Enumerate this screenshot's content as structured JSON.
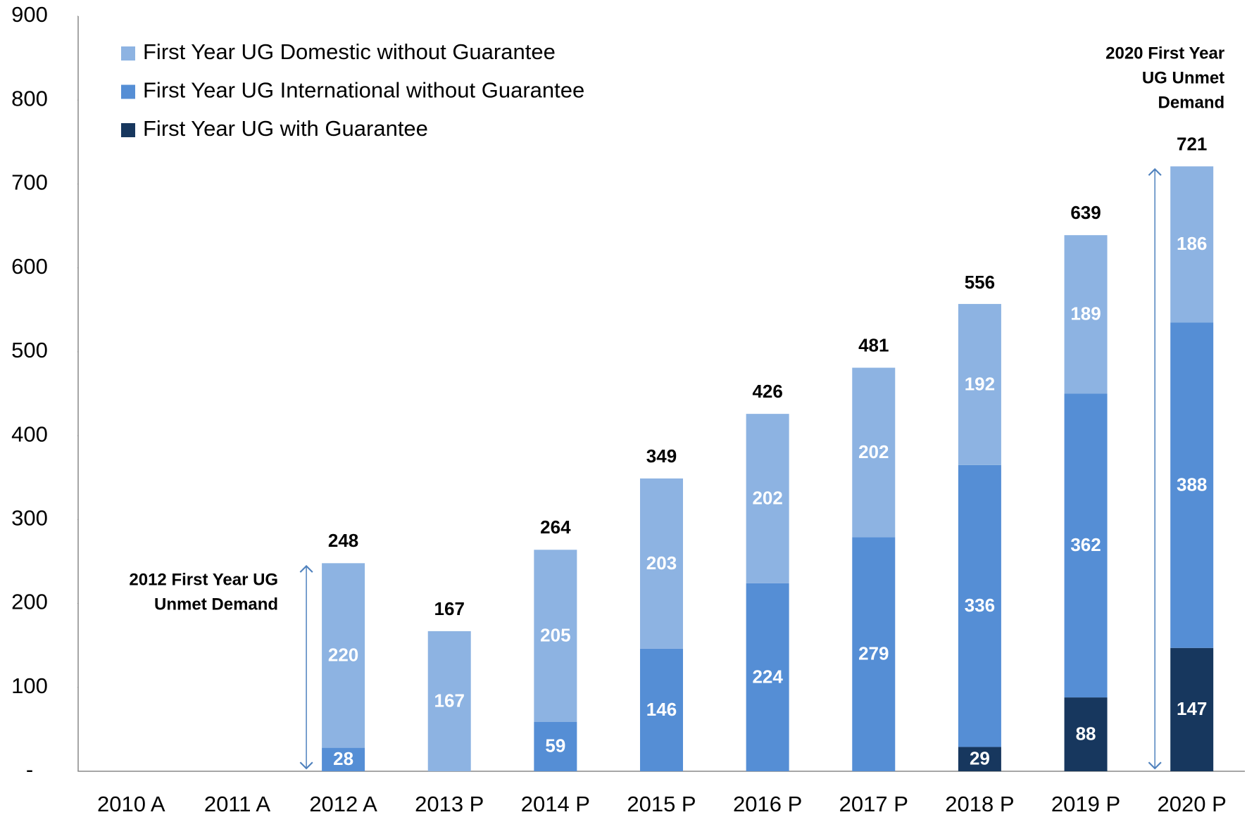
{
  "chart_data": {
    "type": "stacked_bar",
    "categories": [
      "2010 A",
      "2011 A",
      "2012 A",
      "2013 P",
      "2014 P",
      "2015 P",
      "2016 P",
      "2017 P",
      "2018 P",
      "2019 P",
      "2020 P"
    ],
    "series": [
      {
        "name": "First Year UG with Guarantee",
        "color": "#17375e",
        "values": [
          null,
          null,
          null,
          null,
          null,
          null,
          null,
          null,
          29,
          88,
          147
        ]
      },
      {
        "name": "First Year UG International without Guarantee",
        "color": "#558ed5",
        "values": [
          null,
          null,
          28,
          null,
          59,
          146,
          224,
          279,
          336,
          362,
          388
        ]
      },
      {
        "name": "First Year UG Domestic without Guarantee",
        "color": "#8db3e2",
        "values": [
          null,
          null,
          220,
          167,
          205,
          203,
          202,
          202,
          192,
          189,
          186
        ]
      }
    ],
    "totals": [
      null,
      null,
      248,
      167,
      264,
      349,
      426,
      481,
      556,
      639,
      721
    ],
    "annotations": [
      {
        "lines": [
          "2012 First Year UG",
          "Unmet Demand"
        ],
        "category": 2
      },
      {
        "lines": [
          "2020 First Year",
          "UG Unmet",
          "Demand"
        ],
        "category": 10
      }
    ],
    "ylim": [
      0,
      900
    ],
    "yticks": [
      {
        "value": 0,
        "label": "-"
      },
      100,
      200,
      300,
      400,
      500,
      600,
      700,
      800,
      900
    ],
    "grid": false,
    "legend": "top-left"
  }
}
